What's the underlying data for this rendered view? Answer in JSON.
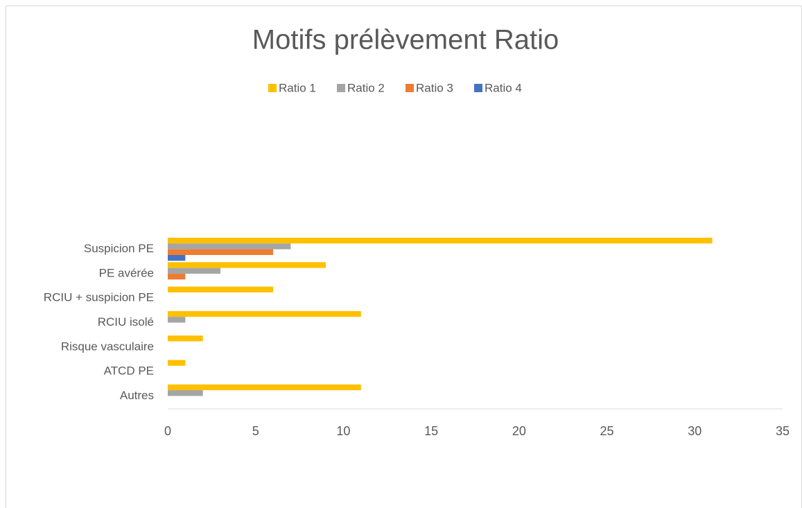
{
  "chart_data": {
    "type": "bar",
    "orientation": "horizontal",
    "title": "Motifs prélèvement Ratio",
    "categories": [
      "Suspicion PE",
      "PE avérée",
      "RCIU + suspicion PE",
      "RCIU isolé",
      "Risque vasculaire",
      "ATCD PE",
      "Autres"
    ],
    "series": [
      {
        "name": "Ratio 1",
        "color": "#FFC000",
        "values": [
          31,
          9,
          6,
          11,
          2,
          1,
          11
        ]
      },
      {
        "name": "Ratio 2",
        "color": "#A5A5A5",
        "values": [
          7,
          3,
          0,
          1,
          0,
          0,
          2
        ]
      },
      {
        "name": "Ratio 3",
        "color": "#ED7D31",
        "values": [
          6,
          1,
          0,
          0,
          0,
          0,
          0
        ]
      },
      {
        "name": "Ratio 4",
        "color": "#4472C4",
        "values": [
          1,
          0,
          0,
          0,
          0,
          0,
          0
        ]
      }
    ],
    "xlim": [
      0,
      35
    ],
    "xticks": [
      0,
      5,
      10,
      15,
      20,
      25,
      30,
      35
    ],
    "grid": false,
    "legend": "top"
  }
}
